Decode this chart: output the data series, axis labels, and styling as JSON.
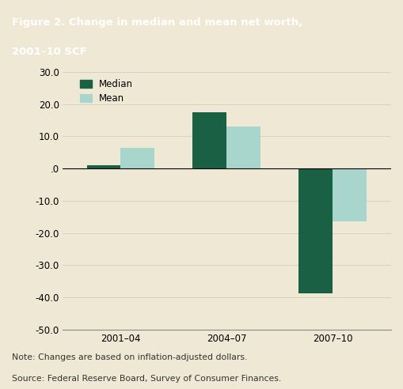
{
  "title_line1": "Figure 2. Change in median and mean net worth,",
  "title_line2": "2001–10 SCF",
  "title_bg_color": "#1e7a63",
  "title_text_color": "#ffffff",
  "bg_color": "#eee8d5",
  "plot_bg_color": "#eee8d5",
  "categories": [
    "2001–04",
    "2004–07",
    "2007–10"
  ],
  "median_values": [
    1.0,
    17.5,
    -38.8
  ],
  "mean_values": [
    6.5,
    13.0,
    -16.5
  ],
  "median_color": "#1a6045",
  "mean_color": "#a8d5cc",
  "ylim": [
    -50,
    30
  ],
  "yticks": [
    -50.0,
    -40.0,
    -30.0,
    -20.0,
    -10.0,
    0.0,
    10.0,
    20.0,
    30.0
  ],
  "note_line1": "Note: Changes are based on inflation-adjusted dollars.",
  "note_line2": "Source: Federal Reserve Board, Survey of Consumer Finances.",
  "legend_median": "Median",
  "legend_mean": "Mean",
  "bar_width": 0.32,
  "separator_color": "#2e7b6b"
}
